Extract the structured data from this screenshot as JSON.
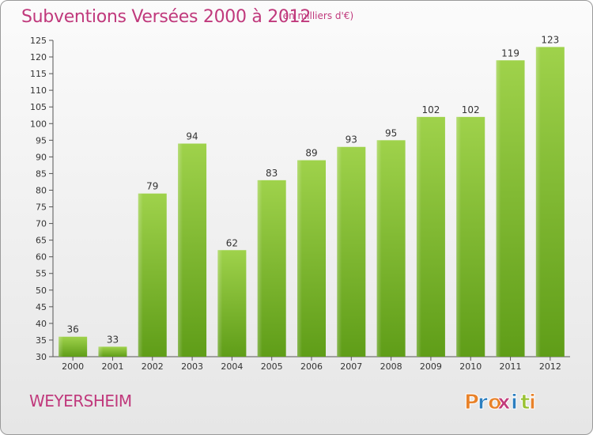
{
  "header": {
    "title": "Subventions Versées 2000 à 2012",
    "unit_note": "(en milliers d'€)"
  },
  "footer": {
    "commune": "WEYERSHEIM",
    "brand": "Proxiti"
  },
  "colors": {
    "title": "#c0397c",
    "bar_top": "#9fd24b",
    "bar_bottom": "#5f9d18",
    "brand_letters": [
      "#e8822a",
      "#2c7fc0",
      "#e8822a",
      "#c23b7b",
      "#2c7fc0",
      "#9ac234",
      "#e8822a"
    ]
  },
  "chart_data": {
    "type": "bar",
    "categories": [
      "2000",
      "2001",
      "2002",
      "2003",
      "2004",
      "2005",
      "2006",
      "2007",
      "2008",
      "2009",
      "2010",
      "2011",
      "2012"
    ],
    "values": [
      36,
      33,
      79,
      94,
      62,
      83,
      89,
      93,
      95,
      102,
      102,
      119,
      123
    ],
    "title": "Subventions Versées 2000 à 2012",
    "xlabel": "",
    "ylabel": "",
    "ylim": [
      30,
      125
    ],
    "yticks": [
      30,
      35,
      40,
      45,
      50,
      55,
      60,
      65,
      70,
      75,
      80,
      85,
      90,
      95,
      100,
      105,
      110,
      115,
      120,
      125
    ],
    "grid": false,
    "legend": "none",
    "data_labels": true
  }
}
